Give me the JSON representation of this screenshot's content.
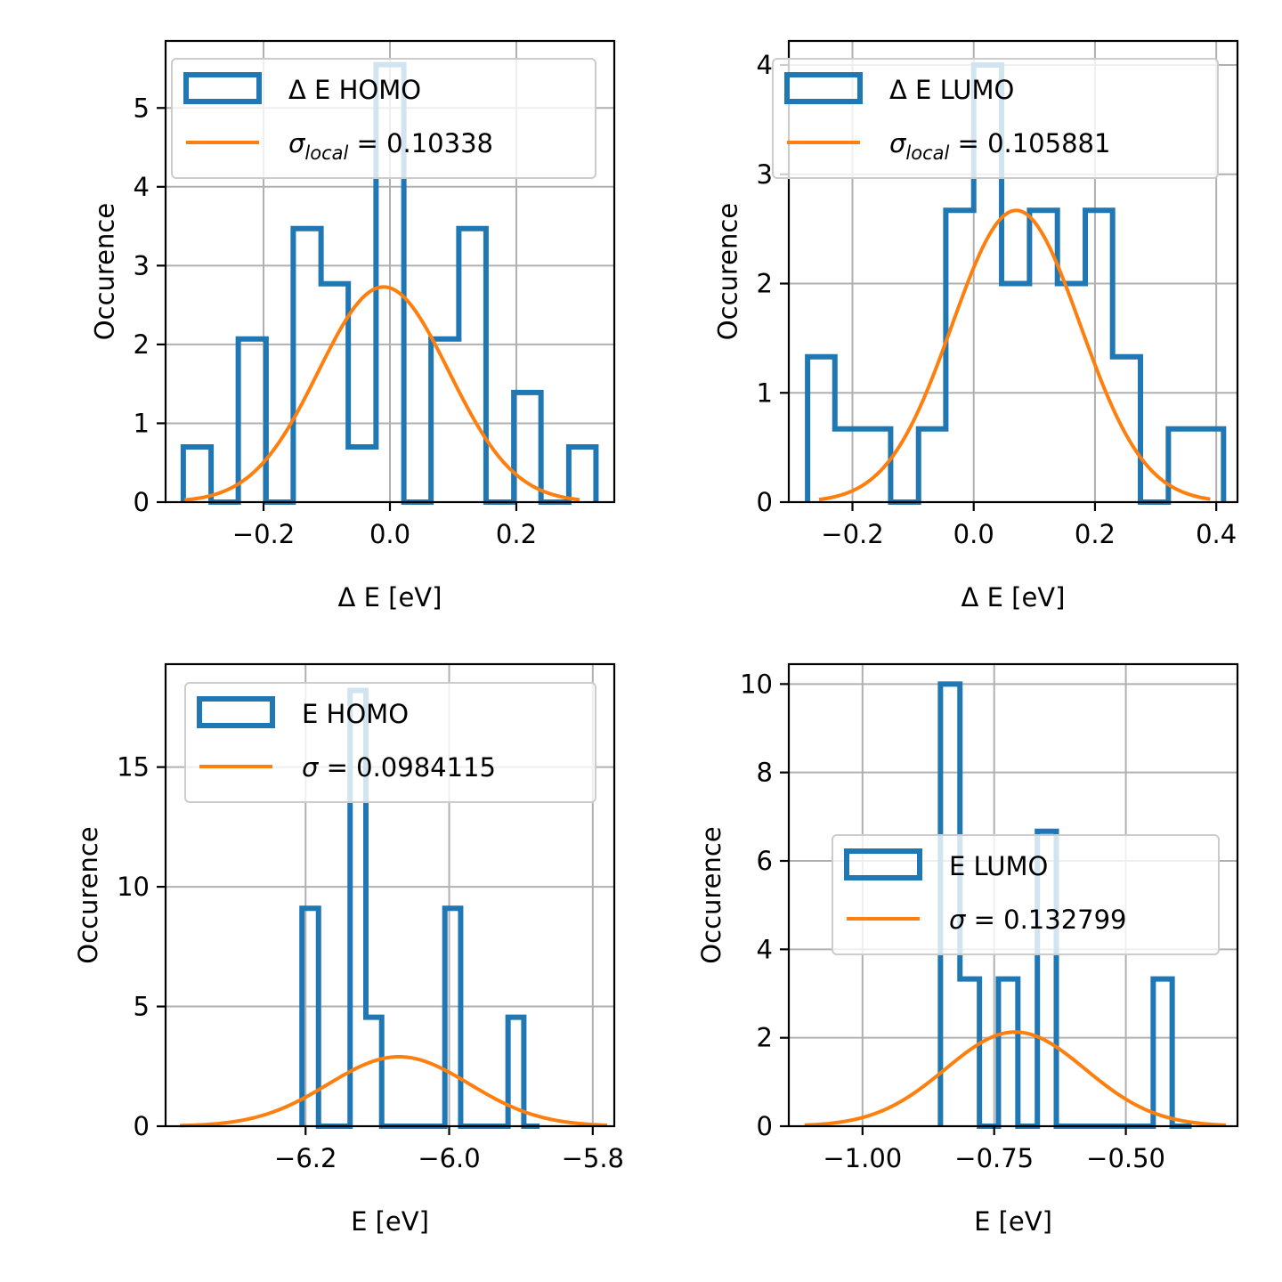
{
  "chart_data": [
    {
      "type": "histogram",
      "xlabel": "Δ E [eV]",
      "ylabel": "Occurence",
      "xlim": [
        -0.355,
        0.355
      ],
      "ylim": [
        0,
        5.85
      ],
      "xticks": [
        -0.2,
        0.0,
        0.2
      ],
      "xtick_labels": [
        "−0.2",
        "0.0",
        "0.2"
      ],
      "yticks": [
        0,
        1,
        2,
        3,
        4,
        5
      ],
      "ytick_labels": [
        "0",
        "1",
        "2",
        "3",
        "4",
        "5"
      ],
      "grid": true,
      "legend_position": "top-left",
      "bin_edges": [
        -0.327,
        -0.283,
        -0.24,
        -0.196,
        -0.153,
        -0.109,
        -0.066,
        -0.022,
        0.022,
        0.065,
        0.109,
        0.152,
        0.196,
        0.239,
        0.283,
        0.326
      ],
      "counts": [
        0.7,
        0,
        2.07,
        0,
        3.47,
        2.77,
        0.7,
        5.55,
        0,
        2.07,
        3.47,
        0,
        1.39,
        0,
        0.7
      ],
      "fit": {
        "mean": -0.01,
        "sigma": 0.10338,
        "peak": 2.73,
        "x_range": [
          -0.325,
          0.3
        ]
      },
      "legend": {
        "hist_label": "Δ E HOMO",
        "fit_prefix": "σ",
        "fit_subscript": "local",
        "fit_suffix": " = 0.10338"
      }
    },
    {
      "type": "histogram",
      "xlabel": "Δ E [eV]",
      "ylabel": "Occurence",
      "xlim": [
        -0.305,
        0.435
      ],
      "ylim": [
        0,
        4.22
      ],
      "xticks": [
        -0.2,
        0.0,
        0.2,
        0.4
      ],
      "xtick_labels": [
        "−0.2",
        "0.0",
        "0.2",
        "0.4"
      ],
      "yticks": [
        0,
        1,
        2,
        3,
        4
      ],
      "ytick_labels": [
        "0",
        "1",
        "2",
        "3",
        "4"
      ],
      "grid": true,
      "legend_position": "top",
      "bin_edges": [
        -0.274,
        -0.229,
        -0.183,
        -0.137,
        -0.091,
        -0.046,
        0.0,
        0.046,
        0.092,
        0.138,
        0.184,
        0.229,
        0.275,
        0.321,
        0.366,
        0.412
      ],
      "counts": [
        1.33,
        0.67,
        0.67,
        0,
        0.67,
        2.67,
        4.0,
        2.0,
        2.67,
        2.0,
        2.67,
        1.33,
        0,
        0.67,
        0.67
      ],
      "fit": {
        "mean": 0.07,
        "sigma": 0.105881,
        "peak": 2.67,
        "x_range": [
          -0.255,
          0.39
        ]
      },
      "legend": {
        "hist_label": "Δ E LUMO",
        "fit_prefix": "σ",
        "fit_subscript": "local",
        "fit_suffix": " = 0.105881"
      }
    },
    {
      "type": "histogram",
      "xlabel": "E [eV]",
      "ylabel": "Occurence",
      "xlim": [
        -6.395,
        -5.77
      ],
      "ylim": [
        0,
        19.3
      ],
      "xticks": [
        -6.2,
        -6.0,
        -5.8
      ],
      "xtick_labels": [
        "−6.2",
        "−6.0",
        "−5.8"
      ],
      "yticks": [
        0,
        5,
        10,
        15
      ],
      "ytick_labels": [
        "0",
        "5",
        "10",
        "15"
      ],
      "grid": true,
      "legend_position": "top-right",
      "bin_edges": [
        -6.205,
        -6.182,
        -6.16,
        -6.138,
        -6.116,
        -6.094,
        -6.072,
        -6.05,
        -6.028,
        -6.006,
        -5.984,
        -5.962,
        -5.94,
        -5.918,
        -5.896,
        -5.874
      ],
      "counts": [
        9.1,
        0,
        0,
        18.2,
        4.55,
        0,
        0,
        0,
        0,
        9.1,
        0,
        0,
        0,
        4.55,
        0
      ],
      "fit": {
        "mean": -6.07,
        "sigma": 0.0984115,
        "peak": 2.9,
        "x_range": [
          -6.375,
          -5.78
        ]
      },
      "legend": {
        "hist_label": "E HOMO",
        "fit_prefix": "σ",
        "fit_subscript": "",
        "fit_suffix": " = 0.0984115"
      }
    },
    {
      "type": "histogram",
      "xlabel": "E [eV]",
      "ylabel": "Occurence",
      "xlim": [
        -1.14,
        -0.288
      ],
      "ylim": [
        0,
        10.45
      ],
      "xticks": [
        -1.0,
        -0.75,
        -0.5
      ],
      "xtick_labels": [
        "−1.00",
        "−0.75",
        "−0.50"
      ],
      "yticks": [
        0,
        2,
        4,
        6,
        8,
        10
      ],
      "ytick_labels": [
        "0",
        "2",
        "4",
        "6",
        "8",
        "10"
      ],
      "grid": true,
      "legend_position": "center-right",
      "bin_edges": [
        -0.852,
        -0.815,
        -0.778,
        -0.742,
        -0.705,
        -0.668,
        -0.632,
        -0.595,
        -0.558,
        -0.522,
        -0.485,
        -0.448,
        -0.412,
        -0.375
      ],
      "counts": [
        10,
        3.33,
        0,
        3.33,
        0,
        6.67,
        0,
        0,
        0,
        0,
        0,
        3.33,
        0
      ],
      "fit": {
        "mean": -0.71,
        "sigma": 0.132799,
        "peak": 2.13,
        "x_range": [
          -1.11,
          -0.31
        ]
      },
      "legend": {
        "hist_label": "E LUMO",
        "fit_prefix": "σ",
        "fit_subscript": "",
        "fit_suffix": " = 0.132799"
      }
    }
  ]
}
